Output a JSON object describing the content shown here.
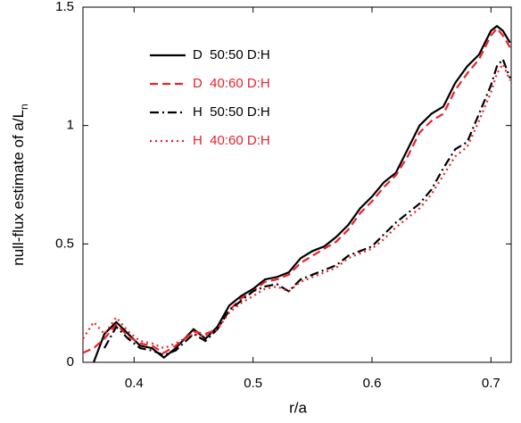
{
  "chart_data": {
    "type": "line",
    "xlabel": "r/a",
    "ylabel": "null-flux estimate of a/L",
    "ylabel_subscript": "n",
    "x": [
      0.357,
      0.366,
      0.375,
      0.385,
      0.395,
      0.405,
      0.415,
      0.425,
      0.435,
      0.45,
      0.46,
      0.47,
      0.48,
      0.49,
      0.5,
      0.51,
      0.52,
      0.53,
      0.54,
      0.55,
      0.56,
      0.57,
      0.58,
      0.59,
      0.6,
      0.61,
      0.62,
      0.63,
      0.64,
      0.65,
      0.66,
      0.67,
      0.68,
      0.69,
      0.7,
      0.705,
      0.71,
      0.716
    ],
    "series": [
      {
        "name": "D  50:50 D:H",
        "color": "#000000",
        "dash": "none",
        "values": [
          null,
          0.0,
          0.12,
          0.17,
          0.12,
          0.07,
          0.06,
          0.02,
          0.06,
          0.14,
          0.1,
          0.15,
          0.24,
          0.28,
          0.31,
          0.35,
          0.36,
          0.38,
          0.44,
          0.47,
          0.49,
          0.53,
          0.58,
          0.65,
          0.7,
          0.76,
          0.8,
          0.9,
          1.0,
          1.05,
          1.08,
          1.18,
          1.25,
          1.3,
          1.4,
          1.42,
          1.4,
          1.35
        ]
      },
      {
        "name": "D  40:60 D:H",
        "color": "#e8222a",
        "dash": "9 5",
        "values": [
          0.04,
          0.06,
          0.1,
          0.16,
          0.11,
          0.08,
          0.07,
          0.04,
          0.07,
          0.13,
          0.12,
          0.14,
          0.22,
          0.27,
          0.3,
          0.34,
          0.35,
          0.37,
          0.42,
          0.45,
          0.48,
          0.51,
          0.56,
          0.63,
          0.68,
          0.74,
          0.79,
          0.87,
          0.97,
          1.02,
          1.05,
          1.15,
          1.22,
          1.28,
          1.38,
          1.41,
          1.38,
          1.33
        ]
      },
      {
        "name": "H  50:50 D:H",
        "color": "#000000",
        "dash": "10 4 2 4",
        "values": [
          null,
          null,
          0.06,
          0.15,
          0.1,
          0.06,
          0.05,
          0.03,
          0.05,
          0.12,
          0.09,
          0.14,
          0.22,
          0.26,
          0.3,
          0.32,
          0.33,
          0.3,
          0.35,
          0.37,
          0.39,
          0.41,
          0.45,
          0.47,
          0.49,
          0.54,
          0.59,
          0.63,
          0.67,
          0.73,
          0.82,
          0.9,
          0.93,
          1.05,
          1.17,
          1.25,
          1.28,
          1.2
        ]
      },
      {
        "name": "H  40:60 D:H",
        "color": "#e8222a",
        "dash": "2 4",
        "values": [
          0.1,
          0.17,
          0.12,
          0.19,
          0.13,
          0.09,
          0.08,
          0.06,
          0.08,
          0.12,
          0.11,
          0.14,
          0.21,
          0.25,
          0.28,
          0.31,
          0.32,
          0.3,
          0.34,
          0.36,
          0.38,
          0.4,
          0.44,
          0.46,
          0.48,
          0.52,
          0.57,
          0.61,
          0.65,
          0.71,
          0.79,
          0.87,
          0.91,
          1.02,
          1.14,
          1.22,
          1.26,
          1.19
        ]
      }
    ],
    "xlim": [
      0.357,
      0.717
    ],
    "ylim": [
      0,
      1.5
    ],
    "xticks": [
      0.4,
      0.5,
      0.6,
      0.7
    ],
    "yticks": [
      0,
      0.5,
      1,
      1.5
    ],
    "legend": "upper left"
  }
}
